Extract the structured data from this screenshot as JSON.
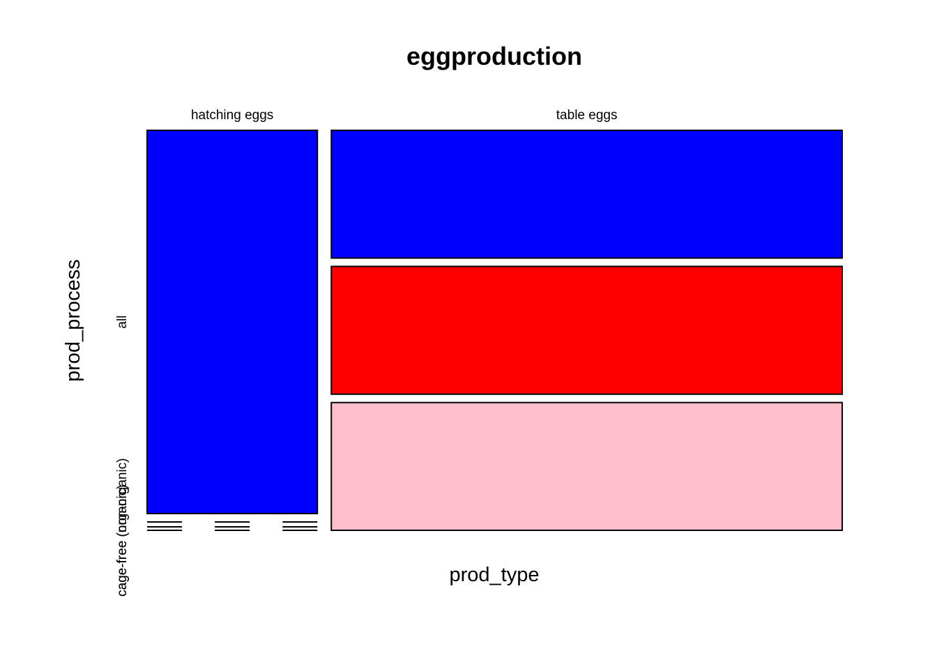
{
  "chart_data": {
    "type": "mosaic",
    "title": "eggproduction",
    "xlabel": "prod_type",
    "ylabel": "prod_process",
    "columns": [
      {
        "label": "hatching eggs",
        "cells": [
          {
            "process": "all",
            "value": 1,
            "color": "#0000ff"
          },
          {
            "process": "cage-free (non-organic)",
            "value": 0,
            "color": "#ff0000"
          },
          {
            "process": "cage-free (organic)",
            "value": 0,
            "color": "#ffc0cb"
          }
        ]
      },
      {
        "label": "table eggs",
        "cells": [
          {
            "process": "all",
            "value": 1,
            "color": "#0000ff"
          },
          {
            "process": "cage-free (non-organic)",
            "value": 1,
            "color": "#ff0000"
          },
          {
            "process": "cage-free (organic)",
            "value": 1,
            "color": "#ffc0cb"
          }
        ]
      }
    ],
    "row_labels": [
      "all",
      "cage-free (non-organic)",
      "cage-free (organic)"
    ],
    "colors": {
      "all": "#0000ff",
      "cage-free (non-organic)": "#ff0000",
      "cage-free (organic)": "#ffc0cb"
    }
  }
}
